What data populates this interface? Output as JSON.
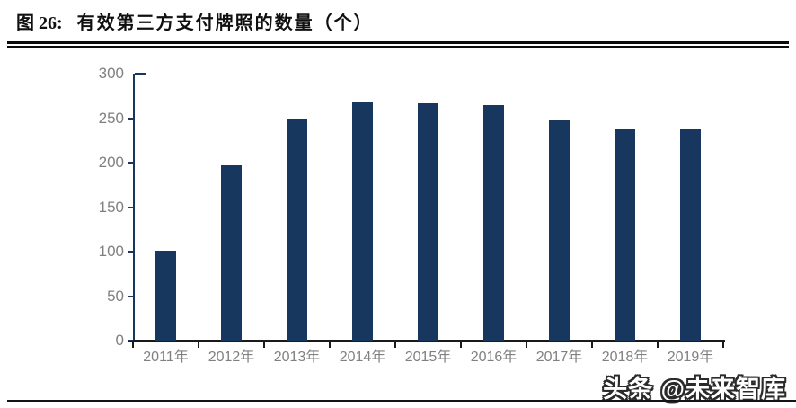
{
  "header": {
    "figure_label": "图 26:",
    "title": "有效第三方支付牌照的数量（个）"
  },
  "chart_data": {
    "type": "bar",
    "title": "有效第三方支付牌照的数量（个）",
    "categories": [
      "2011年",
      "2012年",
      "2013年",
      "2014年",
      "2015年",
      "2016年",
      "2017年",
      "2018年",
      "2019年"
    ],
    "values": [
      101,
      197,
      250,
      269,
      267,
      265,
      247,
      238,
      237
    ],
    "xlabel": "",
    "ylabel": "",
    "ylim": [
      0,
      300
    ],
    "y_ticks": [
      0,
      50,
      100,
      150,
      200,
      250,
      300
    ],
    "grid": false,
    "legend": false,
    "bar_color": "#17375E",
    "y_axis_color": "#17375E",
    "x_axis_color": "#1a1a1a",
    "tick_label_color": "#808080"
  },
  "footer": {
    "watermark": "头条 @未来智库"
  }
}
